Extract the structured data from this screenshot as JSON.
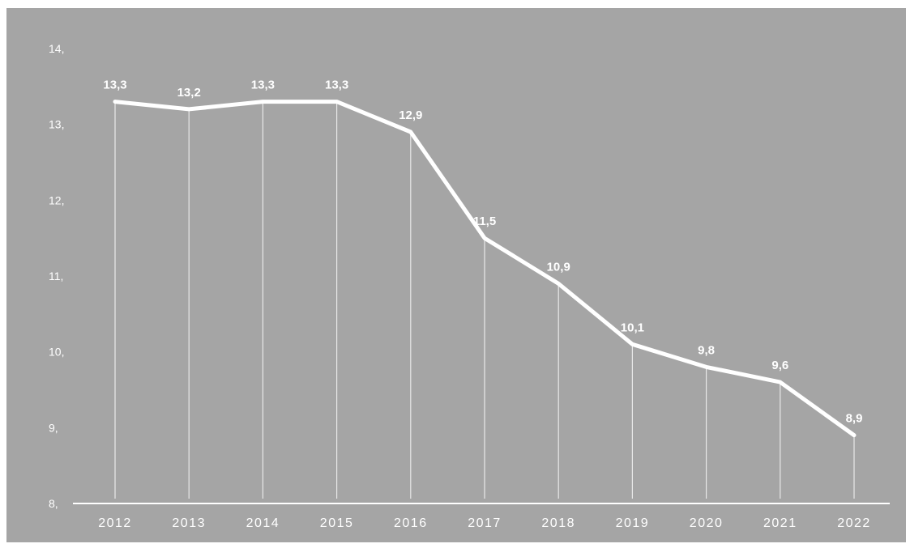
{
  "chart_data": {
    "type": "line",
    "categories": [
      "2012",
      "2013",
      "2014",
      "2015",
      "2016",
      "2017",
      "2018",
      "2019",
      "2020",
      "2021",
      "2022"
    ],
    "values": [
      13.3,
      13.2,
      13.3,
      13.3,
      12.9,
      11.5,
      10.9,
      10.1,
      9.8,
      9.6,
      8.9
    ],
    "data_labels": [
      "13,3",
      "13,2",
      "13,3",
      "13,3",
      "12,9",
      "11,5",
      "10,9",
      "10,1",
      "9,8",
      "9,6",
      "8,9"
    ],
    "y_ticks": [
      8,
      9,
      10,
      11,
      12,
      13,
      14
    ],
    "y_tick_labels": [
      "8,",
      "9,",
      "10,",
      "11,",
      "12,",
      "13,",
      "14,"
    ],
    "ylim": [
      8,
      14
    ],
    "title": "",
    "xlabel": "",
    "ylabel": "",
    "grid": false,
    "legend": "none",
    "drop_lines": true,
    "colors": {
      "background": "#a5a5a5",
      "line": "#ffffff",
      "text": "#ffffff"
    }
  }
}
